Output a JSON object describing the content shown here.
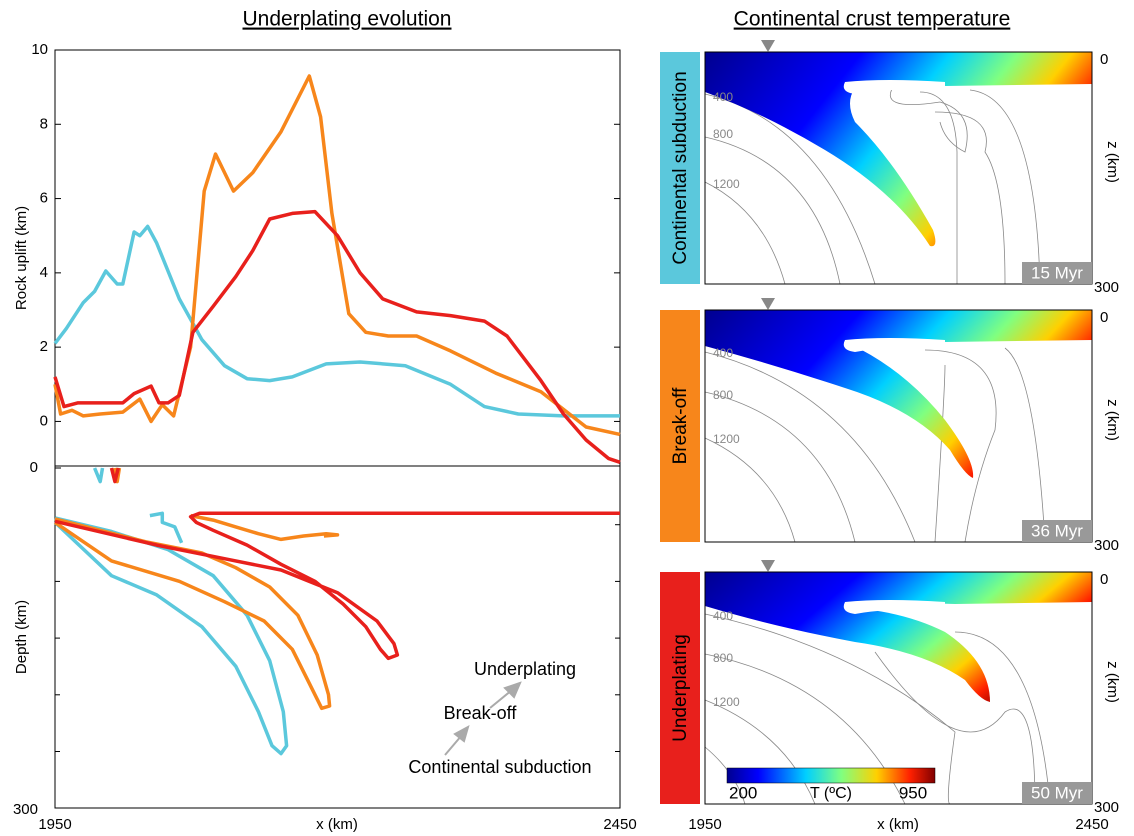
{
  "chart_data": [
    {
      "type": "line",
      "title": "Underplating evolution",
      "y_label": "Rock uplift (km)",
      "xlim": [
        1950,
        2450
      ],
      "ylim": [
        -1.2,
        10
      ],
      "yticks": [
        0,
        2,
        4,
        6,
        8,
        10
      ],
      "series": [
        {
          "name": "Continental subduction",
          "color": "#5bc8dc",
          "x": [
            1950,
            1960,
            1975,
            1985,
            1995,
            2005,
            2010,
            2020,
            2025,
            2032,
            2040,
            2060,
            2080,
            2100,
            2120,
            2140,
            2160,
            2190,
            2220,
            2260,
            2300,
            2330,
            2360,
            2400,
            2450
          ],
          "values": [
            2.1,
            2.5,
            3.2,
            3.5,
            4.05,
            3.7,
            3.7,
            5.1,
            5.0,
            5.25,
            4.8,
            3.3,
            2.2,
            1.5,
            1.15,
            1.1,
            1.2,
            1.55,
            1.6,
            1.5,
            1.0,
            0.4,
            0.2,
            0.15,
            0.15
          ]
        },
        {
          "name": "Break-off",
          "color": "#f7861b",
          "x": [
            1950,
            1955,
            1965,
            1975,
            1990,
            2010,
            2025,
            2035,
            2045,
            2055,
            2070,
            2082,
            2092,
            2108,
            2125,
            2150,
            2175,
            2185,
            2195,
            2210,
            2225,
            2245,
            2270,
            2300,
            2340,
            2380,
            2420,
            2450
          ],
          "values": [
            1.0,
            0.2,
            0.3,
            0.15,
            0.2,
            0.25,
            0.6,
            0.0,
            0.45,
            0.15,
            2.0,
            6.2,
            7.2,
            6.2,
            6.7,
            7.8,
            9.3,
            8.2,
            5.6,
            2.9,
            2.4,
            2.3,
            2.3,
            1.9,
            1.3,
            0.8,
            -0.15,
            -0.35
          ]
        },
        {
          "name": "Underplating",
          "color": "#e8201c",
          "x": [
            1950,
            1958,
            1970,
            1990,
            2010,
            2020,
            2035,
            2042,
            2050,
            2060,
            2072,
            2090,
            2110,
            2125,
            2140,
            2160,
            2180,
            2200,
            2220,
            2240,
            2270,
            2300,
            2330,
            2350,
            2380,
            2400,
            2420,
            2440,
            2450
          ],
          "values": [
            1.2,
            0.4,
            0.5,
            0.5,
            0.5,
            0.75,
            0.95,
            0.5,
            0.5,
            0.7,
            2.4,
            3.1,
            3.9,
            4.6,
            5.45,
            5.6,
            5.65,
            5.0,
            4.0,
            3.3,
            2.95,
            2.85,
            2.7,
            2.3,
            1.1,
            0.2,
            -0.5,
            -1.0,
            -1.1
          ]
        }
      ]
    },
    {
      "type": "outline",
      "y_label": "Depth (km)",
      "x_label": "x (km)",
      "y_inverted": true,
      "xlim": [
        1950,
        2450
      ],
      "xticks": [
        1950,
        2450
      ],
      "ylim": [
        0,
        300
      ],
      "yticks": [
        0,
        300
      ],
      "series": [
        {
          "name": "Continental subduction",
          "color": "#5bc8dc",
          "x": [
            1950,
            2000,
            2050,
            2090,
            2120,
            2140,
            2152,
            2155,
            2150,
            2142,
            2130,
            2110,
            2080,
            2040,
            2000,
            1950,
            null,
            1985,
            1990,
            1992,
            null,
            2034,
            2045,
            2045,
            2056,
            2062
          ],
          "values": [
            44,
            56,
            72,
            95,
            130,
            170,
            215,
            245,
            252,
            245,
            215,
            175,
            140,
            112,
            95,
            48,
            null,
            0,
            12,
            0,
            null,
            42,
            40,
            48,
            52,
            66
          ]
        },
        {
          "name": "Break-off",
          "color": "#f7861b",
          "x": [
            1950,
            2030,
            2080,
            2110,
            2140,
            2165,
            2182,
            2192,
            2193,
            2186,
            2175,
            2160,
            2135,
            2100,
            2060,
            2000,
            1950,
            null,
            2070,
            2090,
            2110,
            2130,
            2150,
            2170,
            2190,
            2200,
            2188,
            null,
            2003,
            2005,
            2007
          ],
          "values": [
            45,
            65,
            75,
            88,
            105,
            130,
            165,
            200,
            210,
            212,
            190,
            160,
            135,
            118,
            100,
            82,
            48,
            null,
            42,
            46,
            52,
            58,
            63,
            60,
            58,
            59,
            60,
            null,
            0,
            12,
            0
          ]
        },
        {
          "name": "Underplating",
          "color": "#e8201c",
          "x": [
            1950,
            2040,
            2100,
            2150,
            2200,
            2235,
            2250,
            2253,
            2245,
            2238,
            2225,
            2205,
            2180,
            2150,
            2120,
            2090,
            2075,
            2070,
            2078,
            2100,
            2450,
            null,
            2000,
            2003,
            2006
          ],
          "values": [
            47,
            68,
            80,
            90,
            110,
            135,
            155,
            165,
            168,
            160,
            140,
            120,
            100,
            85,
            68,
            55,
            48,
            43,
            40,
            40,
            40,
            null,
            0,
            12,
            0
          ]
        }
      ]
    },
    {
      "type": "heatmap",
      "title": "Continental crust temperature",
      "x_label": "x (km)",
      "y_label": "z (km)",
      "xlim": [
        1950,
        2450
      ],
      "xticks": [
        1950,
        2450
      ],
      "ylim": [
        0,
        300
      ],
      "yticks": [
        0,
        300
      ],
      "isotherm_labels": [
        400,
        800,
        1200
      ],
      "colorbar": {
        "label": "T (ºC)",
        "ticks": [
          200,
          950
        ]
      },
      "panels": [
        {
          "name": "Continental subduction",
          "color": "#5bc8dc",
          "time": "15 Myr"
        },
        {
          "name": "Break-off",
          "color": "#f7861b",
          "time": "36 Myr"
        },
        {
          "name": "Underplating",
          "color": "#e8201c",
          "time": "50 Myr"
        }
      ]
    }
  ]
}
